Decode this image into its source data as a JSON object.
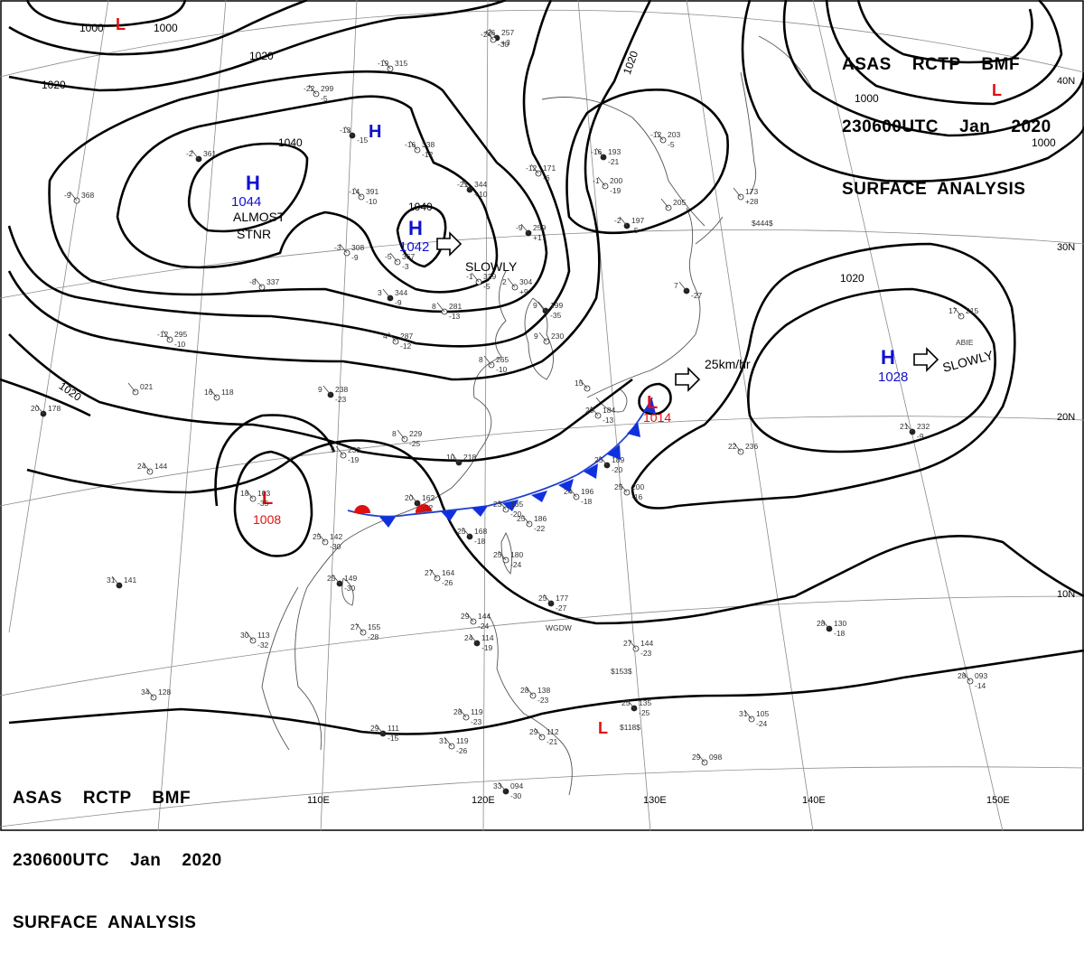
{
  "header": {
    "line1": "ASAS    RCTP    BMF",
    "line2": "230600UTC    Jan    2020",
    "line3": "SURFACE  ANALYSIS"
  },
  "colors": {
    "high": "#1010d0",
    "low": "#e01010",
    "isobar": "#000000",
    "coast": "#555555",
    "grid": "#888888"
  },
  "longitude_labels": [
    "110E",
    "120E",
    "130E",
    "140E",
    "150E"
  ],
  "latitude_labels": [
    "40N",
    "30N",
    "20N",
    "10N"
  ],
  "isobar_labels": [
    "1000",
    "1000",
    "1020",
    "1020",
    "1040",
    "1040",
    "1020",
    "1020",
    "1020",
    "1000",
    "1000"
  ],
  "pressure_systems": [
    {
      "type": "H",
      "value": "1044",
      "motion": "ALMOST STNR"
    },
    {
      "type": "H",
      "value": "1042",
      "motion": "SLOWLY"
    },
    {
      "type": "H",
      "value": "",
      "motion": ""
    },
    {
      "type": "H",
      "value": "1028",
      "motion": "SLOWLY"
    },
    {
      "type": "L",
      "value": "1008",
      "motion": ""
    },
    {
      "type": "L",
      "value": "1014",
      "motion": "25km/hr"
    },
    {
      "type": "L",
      "value": "",
      "motion": ""
    },
    {
      "type": "L",
      "value": "",
      "motion": ""
    },
    {
      "type": "L",
      "value": "",
      "motion": ""
    }
  ],
  "motion_words": {
    "almost": "ALMOST",
    "stnr": "STNR",
    "slowly": "SLOWLY",
    "speed": "25km/hr"
  },
  "stations": [
    {
      "a": "-26",
      "b": "257",
      "c": "+3"
    },
    {
      "a": "-19",
      "b": "315",
      "c": ""
    },
    {
      "a": "-22",
      "b": "299",
      "c": "-5"
    },
    {
      "a": "-13",
      "b": "",
      "c": "-15"
    },
    {
      "a": "-16",
      "b": "338",
      "c": "-12"
    },
    {
      "a": "-14",
      "b": "391",
      "c": "-10"
    },
    {
      "a": "-21",
      "b": "344",
      "c": "+10"
    },
    {
      "a": "-3",
      "b": "308",
      "c": "-9"
    },
    {
      "a": "-5",
      "b": "367",
      "c": "-3"
    },
    {
      "a": "-9",
      "b": "259",
      "c": "+17"
    },
    {
      "a": "-1",
      "b": "329",
      "c": "-5"
    },
    {
      "a": "2",
      "b": "304",
      "c": "+9"
    },
    {
      "a": "3",
      "b": "344",
      "c": "-9"
    },
    {
      "a": "8",
      "b": "281",
      "c": "-13"
    },
    {
      "a": "4",
      "b": "287",
      "c": "-12"
    },
    {
      "a": "9",
      "b": "199",
      "c": "-35"
    },
    {
      "a": "9",
      "b": "230",
      "c": ""
    },
    {
      "a": "8",
      "b": "265",
      "c": "-10"
    },
    {
      "a": "9",
      "b": "238",
      "c": "-23"
    },
    {
      "a": "8",
      "b": "229",
      "c": "-25"
    },
    {
      "a": "5",
      "b": "233",
      "c": "-19"
    },
    {
      "a": "10",
      "b": "218",
      "c": ""
    },
    {
      "a": "-12",
      "b": "295",
      "c": "-10"
    },
    {
      "a": "-8",
      "b": "337",
      "c": ""
    },
    {
      "a": "-2",
      "b": "361",
      "c": ""
    },
    {
      "a": "-9",
      "b": "368",
      "c": ""
    },
    {
      "a": "-12",
      "b": "171",
      "c": "-6"
    },
    {
      "a": "-16",
      "b": "193",
      "c": "-21"
    },
    {
      "a": "-1",
      "b": "200",
      "c": "-19"
    },
    {
      "a": "-12",
      "b": "203",
      "c": "-5"
    },
    {
      "a": "-2",
      "b": "197",
      "c": "-5"
    },
    {
      "a": "",
      "b": "205",
      "c": ""
    },
    {
      "a": "",
      "b": "173",
      "c": "+28"
    },
    {
      "a": "7",
      "b": "",
      "c": "-27"
    },
    {
      "a": "15",
      "b": "",
      "c": ""
    },
    {
      "a": "20",
      "b": "184",
      "c": "-13"
    },
    {
      "a": "25",
      "b": "189",
      "c": "-20"
    },
    {
      "a": "24",
      "b": "196",
      "c": "-18"
    },
    {
      "a": "25",
      "b": "200",
      "c": "-16"
    },
    {
      "a": "20",
      "b": "162",
      "c": "-32"
    },
    {
      "a": "23",
      "b": "185",
      "c": "-20"
    },
    {
      "a": "25",
      "b": "186",
      "c": "-22"
    },
    {
      "a": "25",
      "b": "168",
      "c": "-18"
    },
    {
      "a": "25",
      "b": "180",
      "c": "-24"
    },
    {
      "a": "27",
      "b": "164",
      "c": "-26"
    },
    {
      "a": "25",
      "b": "177",
      "c": "-27"
    },
    {
      "a": "18",
      "b": "103",
      "c": "-35"
    },
    {
      "a": "25",
      "b": "142",
      "c": "-30"
    },
    {
      "a": "25",
      "b": "149",
      "c": "-30"
    },
    {
      "a": "27",
      "b": "155",
      "c": "-28"
    },
    {
      "a": "24",
      "b": "144",
      "c": ""
    },
    {
      "a": "20",
      "b": "178",
      "c": ""
    },
    {
      "a": "16",
      "b": "118",
      "c": ""
    },
    {
      "a": "",
      "b": "021",
      "c": ""
    },
    {
      "a": "31",
      "b": "141",
      "c": ""
    },
    {
      "a": "30",
      "b": "113",
      "c": "-32"
    },
    {
      "a": "34",
      "b": "128",
      "c": ""
    },
    {
      "a": "29",
      "b": "111",
      "c": "-15"
    },
    {
      "a": "31",
      "b": "119",
      "c": "-26"
    },
    {
      "a": "29",
      "b": "144",
      "c": "-24"
    },
    {
      "a": "24",
      "b": "114",
      "c": "-19"
    },
    {
      "a": "28",
      "b": "138",
      "c": "-23"
    },
    {
      "a": "27",
      "b": "144",
      "c": "-23"
    },
    {
      "a": "25",
      "b": "135",
      "c": "-25"
    },
    {
      "a": "28",
      "b": "119",
      "c": "-23"
    },
    {
      "a": "29",
      "b": "112",
      "c": "-21"
    },
    {
      "a": "33",
      "b": "094",
      "c": "-30"
    },
    {
      "a": "29",
      "b": "098",
      "c": ""
    },
    {
      "a": "31",
      "b": "105",
      "c": "-24"
    },
    {
      "a": "28",
      "b": "130",
      "c": "-18"
    },
    {
      "a": "28",
      "b": "093",
      "c": "-14"
    },
    {
      "a": "22",
      "b": "236",
      "c": ""
    },
    {
      "a": "21",
      "b": "232",
      "c": "-9"
    },
    {
      "a": "17",
      "b": "215",
      "c": ""
    },
    {
      "a": "-24",
      "b": "",
      "c": "-30"
    }
  ],
  "warnings": [
    "$444$",
    "ABIE",
    "WGDW",
    "$153$",
    "$118$"
  ]
}
